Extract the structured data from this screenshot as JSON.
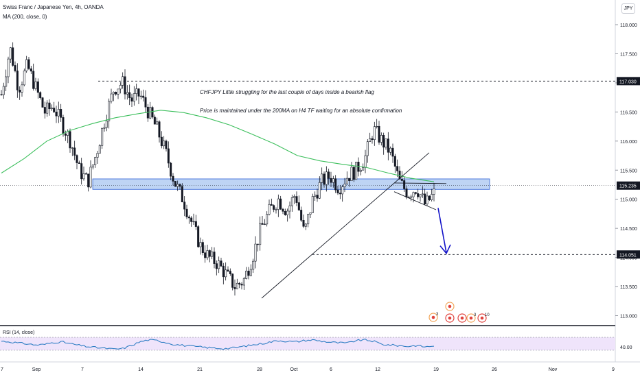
{
  "header": {
    "title": "Swiss Franc / Japanese Yen, 4h, OANDA",
    "indicator": "MA (200, close, 0)",
    "currency": "JPY"
  },
  "annotations": {
    "note_1": "CHFJPY Little struggling for the last couple of days inside a bearish flag",
    "note_2": "Price is maintained under the 200MA on H4 TF waiting for an absolute confirmation"
  },
  "rsi_panel": {
    "label": "RSI (14, close)",
    "tick": "40.00",
    "upper_band": 70,
    "lower_band": 30
  },
  "colors": {
    "candle": "#131722",
    "ma": "#3cbf5c",
    "zone_fill": "#b3ccf2",
    "zone_border": "#2e62d6",
    "arrow": "#1414c8",
    "rsi_line": "#2f7ec4",
    "rsi_band": "#efe4fb",
    "price_badge": "#131722",
    "event_red": "#e0413c",
    "event_orange": "#f2a65a"
  },
  "chart_data": {
    "type": "candlestick",
    "title": "Swiss Franc / Japanese Yen, 4h, OANDA",
    "ylim": [
      112.9,
      118.15
    ],
    "y_ticks": [
      "118.000",
      "117.500",
      "117.000",
      "116.500",
      "116.000",
      "115.500",
      "115.000",
      "114.500",
      "114.000",
      "113.500",
      "113.000"
    ],
    "x_ticks": [
      "7",
      "Sep",
      "7",
      "14",
      "21",
      "28",
      "Oct",
      "6",
      "12",
      "19",
      "26",
      "Nov",
      "9"
    ],
    "price_labels": [
      {
        "value": 117.03,
        "text": "117.030"
      },
      {
        "value": 115.235,
        "text": "115.235"
      },
      {
        "value": 114.051,
        "text": "114.051"
      }
    ],
    "close_series": [
      116.8,
      117.6,
      116.9,
      117.3,
      116.9,
      116.5,
      116.6,
      116.3,
      116.0,
      115.5,
      115.3,
      115.8,
      116.4,
      116.9,
      117.0,
      116.7,
      116.8,
      116.5,
      116.2,
      115.8,
      115.3,
      115.0,
      114.6,
      114.2,
      114.0,
      113.9,
      113.7,
      113.5,
      113.6,
      114.0,
      114.5,
      114.8,
      115.0,
      114.8,
      115.1,
      114.4,
      115.0,
      115.3,
      115.4,
      115.2,
      115.4,
      115.5,
      115.7,
      116.2,
      116.0,
      115.8,
      115.3,
      115.1,
      115.2,
      114.9,
      115.1
    ],
    "series": [
      {
        "name": "MA (200, close, 0)",
        "values": [
          115.45,
          115.7,
          116.0,
          116.18,
          116.3,
          116.4,
          116.47,
          116.53,
          116.49,
          116.4,
          116.28,
          116.12,
          115.95,
          115.75,
          115.66,
          115.6,
          115.55,
          115.45,
          115.36,
          115.3
        ]
      }
    ],
    "levels": [
      117.03,
      114.051
    ],
    "zone": {
      "low": 115.17,
      "high": 115.35
    },
    "trendline": {
      "from": 113.3,
      "to": 115.8
    },
    "rsi": [
      58,
      56,
      52,
      50,
      46,
      48,
      54,
      56,
      50,
      45,
      41,
      38,
      36,
      33,
      35,
      44,
      56,
      62,
      60,
      54,
      48,
      45,
      42,
      40,
      38,
      36,
      35,
      38,
      42,
      46,
      50,
      55,
      60,
      58,
      56,
      60,
      62,
      58,
      55,
      53,
      52,
      60,
      62,
      58,
      48,
      46,
      44,
      42,
      45,
      40,
      44
    ],
    "events": [
      {
        "text": "3"
      },
      {
        "text": "3"
      },
      {
        "text": "10"
      }
    ]
  }
}
